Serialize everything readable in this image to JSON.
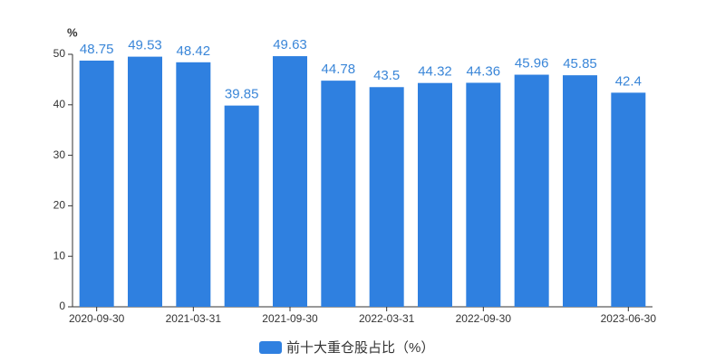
{
  "chart_data": {
    "type": "bar",
    "y_label": "%",
    "categories": [
      "2020-09-30",
      null,
      "2021-03-31",
      null,
      "2021-09-30",
      null,
      "2022-03-31",
      null,
      "2022-09-30",
      null,
      null,
      "2023-06-30"
    ],
    "series": [
      {
        "name": "前十大重仓股占比（%）",
        "color": "#2f80e0",
        "values": [
          48.75,
          49.53,
          48.42,
          39.85,
          49.63,
          44.78,
          43.5,
          44.32,
          44.36,
          45.96,
          45.85,
          42.4
        ]
      }
    ],
    "ylim": [
      0,
      50
    ],
    "yticks": [
      0,
      10,
      20,
      30,
      40,
      50
    ],
    "grid": false,
    "legend": "bottom"
  }
}
